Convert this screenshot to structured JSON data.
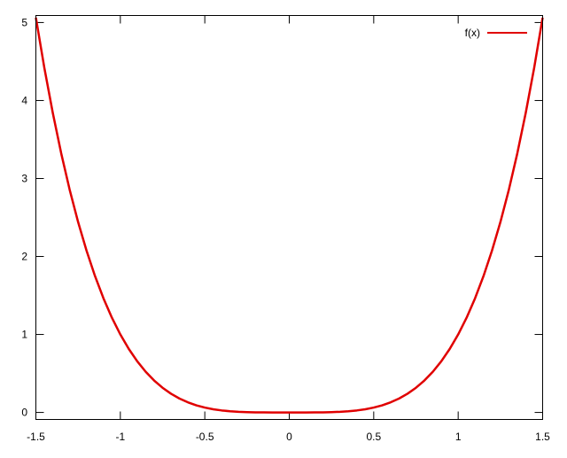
{
  "chart_data": {
    "type": "line",
    "title": "",
    "xlabel": "",
    "ylabel": "",
    "xlim": [
      -1.5,
      1.5
    ],
    "ylim": [
      -0.09,
      5.09
    ],
    "grid": false,
    "legend_placement": "top-right",
    "x_ticks": [
      "-1.5",
      "-1",
      "-0.5",
      "0",
      "0.5",
      "1",
      "1.5"
    ],
    "y_ticks": [
      "0",
      "1",
      "2",
      "3",
      "4",
      "5"
    ],
    "series": [
      {
        "name": "f(x)",
        "color": "#e00000",
        "x": [
          -1.5,
          -1.45,
          -1.4,
          -1.35,
          -1.3,
          -1.25,
          -1.2,
          -1.15,
          -1.1,
          -1.05,
          -1,
          -0.95,
          -0.9,
          -0.85,
          -0.8,
          -0.75,
          -0.7,
          -0.65,
          -0.6,
          -0.55,
          -0.5,
          -0.45,
          -0.4,
          -0.35,
          -0.3,
          -0.25,
          -0.2,
          -0.15,
          -0.1,
          -0.05,
          0,
          0.05,
          0.1,
          0.15,
          0.2,
          0.25,
          0.3,
          0.35,
          0.4,
          0.45,
          0.5,
          0.55,
          0.6,
          0.65,
          0.7,
          0.75,
          0.8,
          0.85,
          0.9,
          0.95,
          1,
          1.05,
          1.1,
          1.15,
          1.2,
          1.25,
          1.3,
          1.35,
          1.4,
          1.45,
          1.5
        ],
        "y": [
          5.0625,
          4.4205,
          3.8416,
          3.3215,
          2.8561,
          2.4414,
          2.0736,
          1.749,
          1.4641,
          1.2155,
          1,
          0.8145,
          0.6561,
          0.522,
          0.4096,
          0.3164,
          0.2401,
          0.1785,
          0.1296,
          0.0915,
          0.0625,
          0.041,
          0.0256,
          0.015,
          0.0081,
          0.0039,
          0.0016,
          0.0005,
          0.0001,
          0,
          0,
          0,
          0.0001,
          0.0005,
          0.0016,
          0.0039,
          0.0081,
          0.015,
          0.0256,
          0.041,
          0.0625,
          0.0915,
          0.1296,
          0.1785,
          0.2401,
          0.3164,
          0.4096,
          0.522,
          0.6561,
          0.8145,
          1,
          1.2155,
          1.4641,
          1.749,
          2.0736,
          2.4414,
          2.8561,
          3.3215,
          3.8416,
          4.4205,
          5.0625
        ]
      }
    ]
  }
}
